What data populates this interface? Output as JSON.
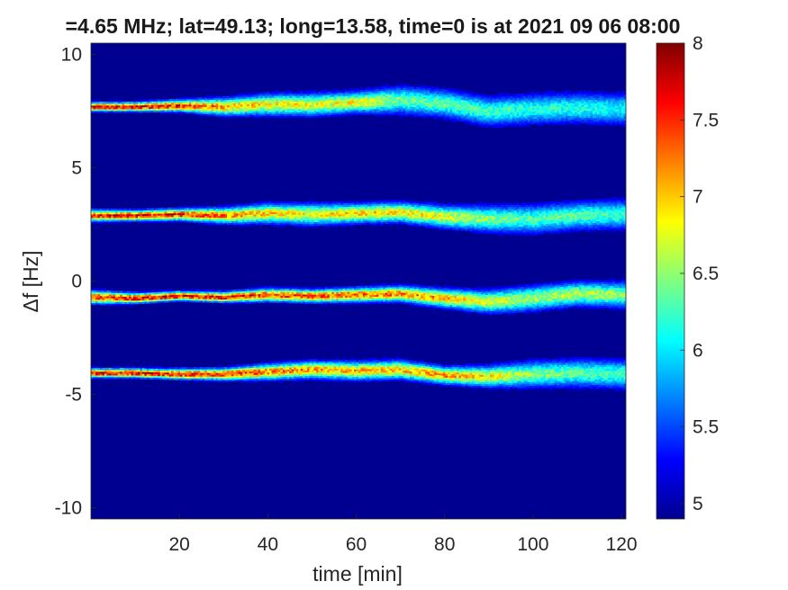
{
  "chart_data": {
    "type": "heatmap",
    "title": "=4.65 MHz;  lat=49.13; long=13.58, time=0 is at 2021 09 06 08:00",
    "xlabel": "time [min]",
    "ylabel": "Δf [Hz]",
    "xlim": [
      0,
      121
    ],
    "ylim": [
      -10.5,
      10.5
    ],
    "x_ticks": [
      20,
      40,
      60,
      80,
      100,
      120
    ],
    "y_ticks": [
      10,
      5,
      0,
      -5,
      -10
    ],
    "x_tick_labels": [
      "20",
      "40",
      "60",
      "80",
      "100",
      "120"
    ],
    "y_tick_labels": [
      "10",
      "5",
      "0",
      "-5",
      "-10"
    ],
    "background_value": 4.95,
    "colormap": "jet",
    "colorbar": {
      "range": [
        4.9,
        8
      ],
      "ticks": [
        5,
        5.5,
        6,
        6.5,
        7,
        7.5,
        8
      ],
      "tick_labels": [
        "5",
        "5.5",
        "6",
        "6.5",
        "7",
        "7.5",
        "8"
      ]
    },
    "series": [
      {
        "time_min": [
          0,
          10,
          20,
          30,
          40,
          50,
          60,
          70,
          80,
          90,
          100,
          110,
          121
        ],
        "center_hz": [
          7.7,
          7.7,
          7.75,
          7.7,
          7.8,
          7.8,
          7.9,
          8.0,
          7.85,
          7.5,
          7.6,
          7.65,
          7.6
        ],
        "peak": [
          7.8,
          7.8,
          7.6,
          7.2,
          6.9,
          6.8,
          6.9,
          6.4,
          6.4,
          6.3,
          6.2,
          6.2,
          6.1
        ]
      },
      {
        "time_min": [
          0,
          10,
          20,
          30,
          40,
          50,
          60,
          70,
          80,
          90,
          100,
          110,
          121
        ],
        "center_hz": [
          2.9,
          2.9,
          2.95,
          2.9,
          3.0,
          2.95,
          3.0,
          3.05,
          2.85,
          2.75,
          2.75,
          2.9,
          2.95
        ],
        "peak": [
          7.6,
          7.7,
          7.6,
          7.3,
          7.0,
          6.9,
          7.0,
          7.0,
          6.8,
          6.5,
          6.3,
          6.4,
          6.2
        ]
      },
      {
        "time_min": [
          0,
          10,
          20,
          30,
          40,
          50,
          60,
          70,
          80,
          90,
          100,
          110,
          121
        ],
        "center_hz": [
          -0.7,
          -0.75,
          -0.65,
          -0.7,
          -0.6,
          -0.65,
          -0.6,
          -0.55,
          -0.75,
          -0.9,
          -0.75,
          -0.55,
          -0.6
        ],
        "peak": [
          7.5,
          7.7,
          7.8,
          7.7,
          7.5,
          7.5,
          7.4,
          7.3,
          7.1,
          6.8,
          6.6,
          6.7,
          6.5
        ]
      },
      {
        "time_min": [
          0,
          10,
          20,
          30,
          40,
          50,
          60,
          70,
          80,
          90,
          100,
          110,
          121
        ],
        "center_hz": [
          -4.05,
          -4.05,
          -4.1,
          -4.1,
          -4.0,
          -3.9,
          -3.95,
          -3.9,
          -4.15,
          -4.2,
          -4.1,
          -4.05,
          -4.1
        ],
        "peak": [
          7.8,
          7.8,
          7.7,
          7.6,
          7.3,
          7.2,
          7.1,
          7.1,
          7.2,
          6.9,
          6.5,
          6.4,
          6.3
        ]
      }
    ]
  }
}
